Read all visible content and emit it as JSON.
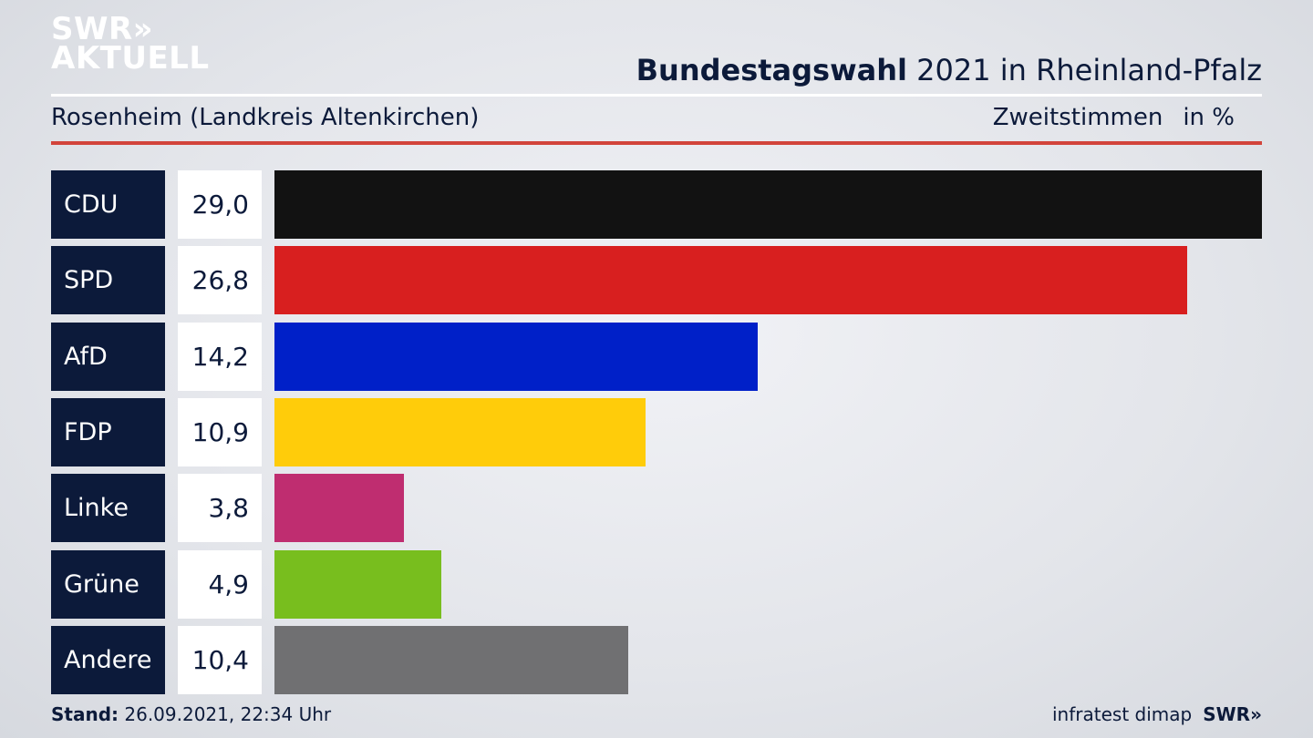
{
  "logo": {
    "line1": "SWR»",
    "line2": "AKTUELL"
  },
  "header": {
    "title_bold": "Bundestagswahl",
    "title_rest": " 2021 in Rheinland-Pfalz",
    "subtitle": "Rosenheim (Landkreis Altenkirchen)",
    "metric": "Zweitstimmen",
    "unit": "in %"
  },
  "chart_data": {
    "type": "bar",
    "orientation": "horizontal",
    "categories": [
      "CDU",
      "SPD",
      "AfD",
      "FDP",
      "Linke",
      "Grüne",
      "Andere"
    ],
    "values": [
      29.0,
      26.8,
      14.2,
      10.9,
      3.8,
      4.9,
      10.4
    ],
    "labels": [
      "29,0",
      "26,8",
      "14,2",
      "10,9",
      "3,8",
      "4,9",
      "10,4"
    ],
    "colors": [
      "#121212",
      "#d81f1f",
      "#0020c8",
      "#ffcc0a",
      "#bf2d70",
      "#78be1e",
      "#707072"
    ],
    "xlim": [
      0,
      29.0
    ]
  },
  "footer": {
    "stand_label": "Stand:",
    "stand_value": " 26.09.2021, 22:34 Uhr",
    "source": "infratest dimap",
    "brand": "SWR»"
  }
}
